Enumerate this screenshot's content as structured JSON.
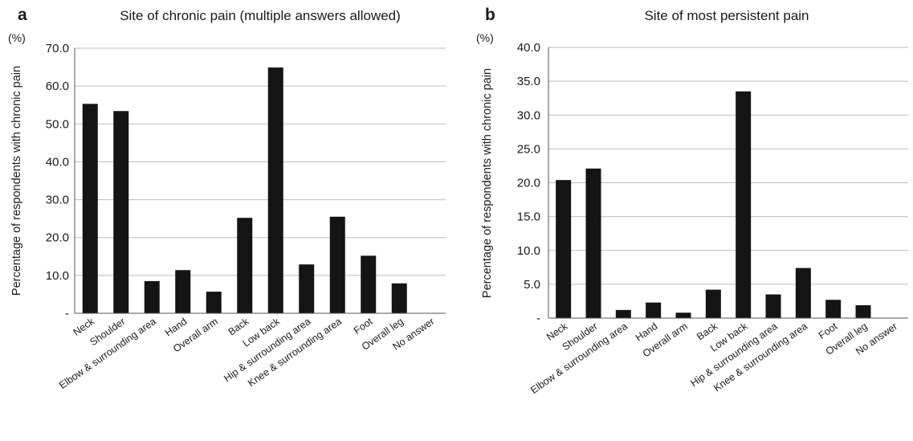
{
  "chart_data": [
    {
      "type": "bar",
      "panel_letter": "a",
      "title": "Site of chronic pain (multiple answers allowed)",
      "ylabel": "Percentage of respondents with chronic pain",
      "unit": "(%)",
      "xlabel": "",
      "categories": [
        "Neck",
        "Shoulder",
        "Elbow & surrounding area",
        "Hand",
        "Overall arm",
        "Back",
        "Low back",
        "Hip & surrounding area",
        "Knee & surrounding area",
        "Foot",
        "Overall leg",
        "No answer"
      ],
      "values": [
        55.3,
        53.4,
        8.5,
        11.4,
        5.7,
        25.2,
        64.9,
        12.9,
        25.5,
        15.2,
        7.9,
        0
      ],
      "ylim": [
        0,
        70
      ],
      "yticks": [
        0,
        10,
        20,
        30,
        40,
        50,
        60,
        70
      ],
      "ytick_labels": [
        "-",
        "10.0",
        "20.0",
        "30.0",
        "40.0",
        "50.0",
        "60.0",
        "70.0"
      ],
      "grid": true,
      "bar_color": "#141414",
      "grid_color": "#bdbdbd"
    },
    {
      "type": "bar",
      "panel_letter": "b",
      "title": "Site of most persistent pain",
      "ylabel": "Percentage of respondents with chronic pain",
      "unit": "(%)",
      "xlabel": "",
      "categories": [
        "Neck",
        "Shoulder",
        "Elbow & surrounding area",
        "Hand",
        "Overall arm",
        "Back",
        "Low back",
        "Hip & surrounding area",
        "Knee & surrounding area",
        "Foot",
        "Overall leg",
        "No answer"
      ],
      "values": [
        20.4,
        22.1,
        1.2,
        2.3,
        0.8,
        4.2,
        33.5,
        3.5,
        7.4,
        2.7,
        1.9,
        0
      ],
      "ylim": [
        0,
        40
      ],
      "yticks": [
        0,
        5,
        10,
        15,
        20,
        25,
        30,
        35,
        40
      ],
      "ytick_labels": [
        "-",
        "5.0",
        "10.0",
        "15.0",
        "20.0",
        "25.0",
        "30.0",
        "35.0",
        "40.0"
      ],
      "grid": true,
      "bar_color": "#141414",
      "grid_color": "#bdbdbd"
    }
  ]
}
